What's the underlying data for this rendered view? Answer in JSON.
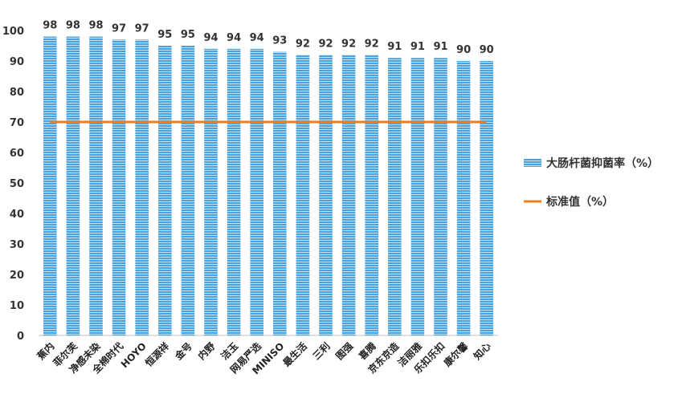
{
  "chart_data": {
    "type": "bar",
    "categories": [
      "蕉内",
      "菲尔芙",
      "净感未染",
      "全棉时代",
      "HOYO",
      "恒源祥",
      "金号",
      "内野",
      "洁玉",
      "网易严选",
      "MINISO",
      "最生活",
      "三利",
      "图强",
      "喜腾",
      "京东京造",
      "洁丽雅",
      "乐扣乐扣",
      "康尔馨",
      "知心"
    ],
    "series": [
      {
        "name": "大肠杆菌抑菌率（%）",
        "type": "bar",
        "values": [
          98,
          98,
          98,
          97,
          97,
          95,
          95,
          94,
          94,
          94,
          93,
          92,
          92,
          92,
          92,
          91,
          91,
          91,
          90,
          90
        ],
        "color": "#4aa3df"
      },
      {
        "name": "标准值（%）",
        "type": "line",
        "value": 70,
        "color": "#f07c1e"
      }
    ],
    "title": "",
    "xlabel": "",
    "ylabel": "",
    "ylim": [
      0,
      100
    ],
    "yticks": [
      0,
      10,
      20,
      30,
      40,
      50,
      60,
      70,
      80,
      90,
      100
    ],
    "grid": false,
    "legend_position": "right"
  }
}
